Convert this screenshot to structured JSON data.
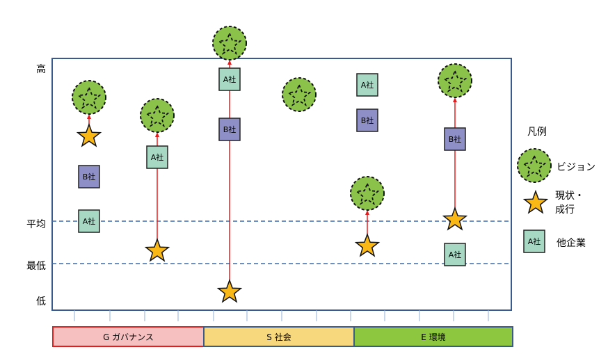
{
  "y_axis": {
    "labels": [
      "高",
      "平均",
      "最低",
      "低"
    ]
  },
  "categories": [
    {
      "label": "G ガバナンス",
      "color": "#f7c0c0",
      "border": "#e02020"
    },
    {
      "label": "S 社会",
      "color": "#f7d87c",
      "border": "#3a5a8c"
    },
    {
      "label": "E 環境",
      "color": "#8dc63f",
      "border": "#3a5a8c"
    }
  ],
  "reference_lines": [
    "平均",
    "最低"
  ],
  "columns": [
    {
      "items": [
        {
          "type": "vision",
          "level": "above-high"
        },
        {
          "type": "current",
          "level": "high-mid"
        },
        {
          "type": "company",
          "label": "B社",
          "color": "#8f8fc8"
        },
        {
          "type": "company",
          "label": "A社",
          "color": "#a6d8c4"
        }
      ]
    },
    {
      "items": [
        {
          "type": "vision"
        },
        {
          "type": "company",
          "label": "A社",
          "color": "#a6d8c4"
        },
        {
          "type": "current"
        }
      ]
    },
    {
      "items": [
        {
          "type": "vision"
        },
        {
          "type": "company",
          "label": "A社",
          "color": "#a6d8c4"
        },
        {
          "type": "company",
          "label": "B社",
          "color": "#8f8fc8"
        },
        {
          "type": "current"
        }
      ]
    },
    {
      "items": [
        {
          "type": "vision"
        }
      ]
    },
    {
      "items": [
        {
          "type": "company",
          "label": "A社",
          "color": "#a6d8c4"
        },
        {
          "type": "company",
          "label": "B社",
          "color": "#8f8fc8"
        },
        {
          "type": "vision"
        },
        {
          "type": "current"
        }
      ]
    },
    {
      "items": [
        {
          "type": "vision"
        },
        {
          "type": "company",
          "label": "B社",
          "color": "#8f8fc8"
        },
        {
          "type": "current"
        },
        {
          "type": "company",
          "label": "A社",
          "color": "#a6d8c4"
        }
      ]
    }
  ],
  "legend": {
    "title": "凡例",
    "vision": "ビジョン",
    "current_line1": "現状・",
    "current_line2": "成行",
    "company_sample": "A社",
    "company": "他企業"
  },
  "colors": {
    "vision": "#8bc34a",
    "star": "#f9b815",
    "arrow": "#e02020",
    "frame": "#3a5a8c"
  }
}
